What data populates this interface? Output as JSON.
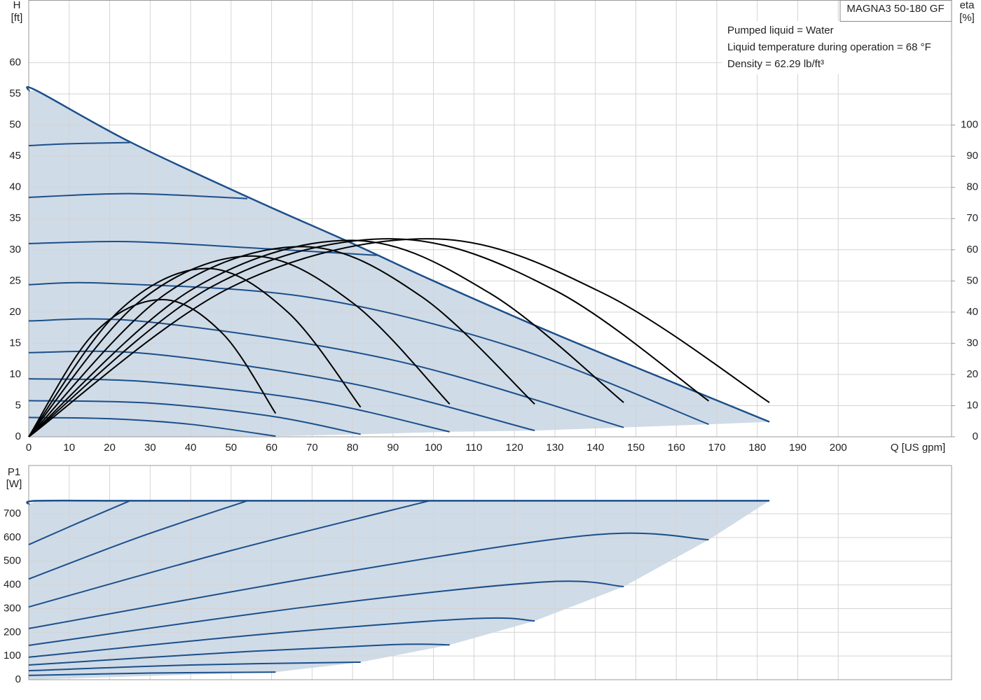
{
  "chart_data": [
    {
      "type": "line",
      "title": "MAGNA3 50-180 GF",
      "annotations": [
        "Pumped liquid = Water",
        "Liquid temperature during operation = 68 °F",
        "Density = 62.29 lb/ft³"
      ],
      "ylabel": "H",
      "yunit": "[ft]",
      "y2label": "eta",
      "y2unit": "[%]",
      "xlabel": "Q [US gpm]",
      "xlim": [
        0,
        228
      ],
      "xticks": [
        0,
        10,
        20,
        30,
        40,
        50,
        60,
        70,
        80,
        90,
        100,
        110,
        120,
        130,
        140,
        150,
        160,
        170,
        180,
        190,
        200
      ],
      "show_xtick_labels": true,
      "ylim": [
        0,
        70
      ],
      "yticks": [
        0,
        5,
        10,
        15,
        20,
        25,
        30,
        35,
        40,
        45,
        50,
        55,
        60
      ],
      "y2lim": [
        0,
        140
      ],
      "y2ticks": [
        0,
        10,
        20,
        30,
        40,
        50,
        60,
        70,
        80,
        90,
        100
      ],
      "grid": true,
      "area_color": "#cfdbe7",
      "series": [
        {
          "envelope": true,
          "color": "#1b4f8a",
          "x": [
            0,
            2,
            25,
            55,
            80,
            100,
            130,
            160,
            183
          ],
          "values": [
            55.5,
            55.5,
            47.3,
            38.2,
            31,
            25,
            16.5,
            8.5,
            2.4
          ]
        },
        {
          "color": "#1b4f8a",
          "x": [
            0,
            20,
            40,
            61
          ],
          "values": [
            3.1,
            2.9,
            2.0,
            0.1
          ]
        },
        {
          "color": "#1b4f8a",
          "x": [
            0,
            30,
            60,
            82
          ],
          "values": [
            5.8,
            5.4,
            3.3,
            0.4
          ]
        },
        {
          "color": "#1b4f8a",
          "x": [
            0,
            30,
            70,
            104
          ],
          "values": [
            9.3,
            8.8,
            5.8,
            0.8
          ]
        },
        {
          "color": "#1b4f8a",
          "x": [
            0,
            30,
            80,
            125
          ],
          "values": [
            13.5,
            13.3,
            8.5,
            1.0
          ]
        },
        {
          "color": "#1b4f8a",
          "x": [
            0,
            30,
            90,
            147
          ],
          "values": [
            18.6,
            18.4,
            12.3,
            1.5
          ]
        },
        {
          "color": "#1b4f8a",
          "x": [
            0,
            20,
            70,
            120,
            168
          ],
          "values": [
            24.4,
            24.6,
            22.3,
            14.3,
            2.0
          ]
        },
        {
          "color": "#1b4f8a",
          "x": [
            0,
            25,
            55,
            86
          ],
          "values": [
            31.0,
            31.3,
            30.3,
            29.1
          ]
        },
        {
          "color": "#1b4f8a",
          "x": [
            0,
            25,
            54
          ],
          "values": [
            38.4,
            39.0,
            38.2
          ]
        },
        {
          "color": "#1b4f8a",
          "x": [
            0,
            10,
            25
          ],
          "values": [
            46.7,
            47.0,
            47.2
          ]
        },
        {
          "axis": "y2",
          "color": "#000000",
          "x": [
            0,
            16,
            33,
            48,
            61
          ],
          "values": [
            0,
            33,
            44,
            33,
            7.5
          ]
        },
        {
          "axis": "y2",
          "color": "#000000",
          "x": [
            0,
            22,
            44,
            64,
            82
          ],
          "values": [
            0,
            40,
            54,
            40,
            9.5
          ]
        },
        {
          "axis": "y2",
          "color": "#000000",
          "x": [
            0,
            27,
            55,
            80,
            104
          ],
          "values": [
            0,
            43,
            58,
            43,
            10.5
          ]
        },
        {
          "axis": "y2",
          "color": "#000000",
          "x": [
            0,
            34,
            68,
            97,
            125
          ],
          "values": [
            0,
            46,
            61,
            45,
            10.5
          ]
        },
        {
          "axis": "y2",
          "color": "#000000",
          "x": [
            0,
            40,
            80,
            114,
            147
          ],
          "values": [
            0,
            47,
            63,
            46,
            11
          ]
        },
        {
          "axis": "y2",
          "color": "#000000",
          "x": [
            0,
            45,
            90,
            130,
            168
          ],
          "values": [
            0,
            48,
            63.5,
            47,
            11.5
          ]
        },
        {
          "axis": "y2",
          "color": "#000000",
          "x": [
            0,
            50,
            100,
            142,
            183
          ],
          "values": [
            0,
            48,
            63.5,
            46,
            11
          ]
        }
      ]
    },
    {
      "type": "line",
      "ylabel": "P1",
      "yunit": "[W]",
      "xlim": [
        0,
        228
      ],
      "xticks": [
        0,
        10,
        20,
        30,
        40,
        50,
        60,
        70,
        80,
        90,
        100,
        110,
        120,
        130,
        140,
        150,
        160,
        170,
        180,
        190,
        200
      ],
      "show_xtick_labels": false,
      "ylim": [
        0,
        904
      ],
      "yticks": [
        0,
        100,
        200,
        300,
        400,
        500,
        600,
        700
      ],
      "grid": true,
      "area_color": "#cfdbe7",
      "series": [
        {
          "envelope": true,
          "color": "#1b4f8a",
          "x": [
            0,
            2,
            25,
            54,
            99,
            183
          ],
          "values": [
            740,
            755,
            755,
            755,
            755,
            755
          ]
        },
        {
          "color": "#1b4f8a",
          "x": [
            0,
            30,
            61
          ],
          "values": [
            18,
            28,
            32
          ]
        },
        {
          "color": "#1b4f8a",
          "x": [
            0,
            40,
            82
          ],
          "values": [
            38,
            62,
            74
          ]
        },
        {
          "color": "#1b4f8a",
          "x": [
            0,
            50,
            90,
            104
          ],
          "values": [
            62,
            115,
            148,
            147
          ]
        },
        {
          "color": "#1b4f8a",
          "x": [
            0,
            60,
            110,
            125
          ],
          "values": [
            95,
            195,
            258,
            248
          ]
        },
        {
          "color": "#1b4f8a",
          "x": [
            0,
            70,
            127,
            147
          ],
          "values": [
            145,
            310,
            412,
            393
          ]
        },
        {
          "color": "#1b4f8a",
          "x": [
            0,
            80,
            140,
            168
          ],
          "values": [
            216,
            460,
            612,
            591
          ]
        },
        {
          "color": "#1b4f8a",
          "x": [
            0,
            50,
            99
          ],
          "values": [
            307,
            545,
            755
          ]
        },
        {
          "color": "#1b4f8a",
          "x": [
            0,
            27,
            54
          ],
          "values": [
            425,
            600,
            755
          ]
        },
        {
          "color": "#1b4f8a",
          "x": [
            0,
            12,
            25
          ],
          "values": [
            570,
            660,
            755
          ]
        }
      ]
    }
  ]
}
